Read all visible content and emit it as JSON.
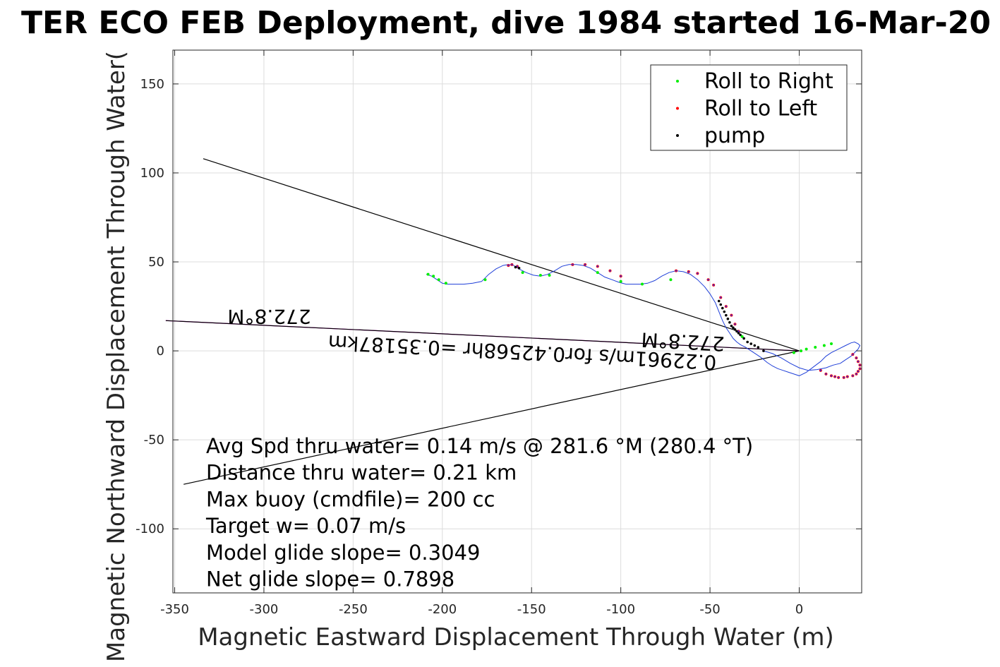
{
  "chart_data": {
    "type": "scatter",
    "title": "TER ECO FEB Deployment, dive 1984 started 16-Mar-20",
    "xlabel": "Magnetic Eastward Displacement Through Water (m)",
    "ylabel": "Magnetic Northward Displacement Through Water(",
    "xlim": [
      -351,
      35
    ],
    "ylim": [
      -136,
      169
    ],
    "grid": true,
    "xticks": [
      -350,
      -300,
      -250,
      -200,
      -150,
      -100,
      -50,
      0
    ],
    "yticks": [
      -100,
      -50,
      0,
      50,
      100,
      150
    ],
    "legend": {
      "placement": "top-right",
      "entries": [
        {
          "label": "Roll to Right",
          "color": "#00ee00"
        },
        {
          "label": "Roll to Left",
          "color": "#ff0000"
        },
        {
          "label": "pump",
          "color": "#000000"
        }
      ]
    },
    "track": {
      "color": "#1f3fd8",
      "x": [
        -209,
        -206,
        -203,
        -200,
        -197,
        -193,
        -188,
        -183,
        -178,
        -174,
        -170,
        -166,
        -163,
        -160,
        -157,
        -153,
        -149,
        -145,
        -141,
        -137,
        -133,
        -129,
        -125,
        -121,
        -117,
        -113,
        -109,
        -105,
        -101,
        -97,
        -93,
        -89,
        -85,
        -81,
        -77,
        -73,
        -69,
        -65,
        -61,
        -57,
        -53,
        -50,
        -47,
        -45,
        -43,
        -41,
        -39,
        -37,
        -35,
        -33,
        -30,
        -27,
        -24,
        -21,
        -18,
        -15,
        -12,
        -9,
        -6,
        -3,
        0,
        4,
        8,
        12,
        15,
        18,
        22,
        26,
        29,
        31,
        33,
        34,
        33,
        31,
        29,
        26,
        23,
        19,
        15,
        10,
        5,
        0,
        -5,
        -10,
        -15,
        -20
      ],
      "y": [
        43,
        42,
        40,
        38,
        37.5,
        37.5,
        37.5,
        38,
        39,
        43,
        46,
        48,
        48.5,
        48,
        46,
        44,
        42.5,
        42,
        43,
        45,
        47.5,
        48.5,
        48.5,
        48,
        46.5,
        44,
        41.5,
        40,
        38.5,
        37.5,
        37.5,
        37.5,
        38,
        39.5,
        42,
        44,
        45,
        44.5,
        43,
        40,
        36,
        32,
        27,
        22,
        17,
        13,
        10,
        7,
        5,
        3.5,
        2,
        0,
        -2,
        -4,
        -6.5,
        -8.5,
        -10,
        -11,
        -12,
        -13,
        -14,
        -12,
        -9,
        -6,
        -3,
        -1,
        1,
        3,
        4.5,
        5,
        4,
        3,
        1,
        -1,
        -3,
        -5,
        -7,
        -8,
        -9.5,
        -10.5,
        -11,
        -9.5,
        -7,
        -4,
        -1.5,
        0
      ]
    },
    "roll_right_points": {
      "x": [
        -208,
        -205,
        -202,
        -198,
        -176,
        -155,
        -145,
        -140,
        -113,
        -100,
        -88,
        -72,
        -32,
        -3,
        1,
        4,
        9,
        14,
        18
      ],
      "y": [
        43,
        42,
        40,
        38,
        40,
        44,
        42.5,
        42.5,
        44,
        39,
        37.5,
        40,
        8,
        -1,
        0,
        1,
        2,
        3,
        4
      ]
    },
    "roll_left_points": {
      "x": [
        -163,
        -161,
        -158,
        -127,
        -120,
        -113,
        -106,
        -100,
        -69,
        -62,
        -57,
        -51,
        -48,
        -44,
        -41,
        -38,
        -36,
        -34,
        30,
        32,
        33,
        34,
        34,
        33,
        32,
        30,
        27,
        25,
        22,
        20,
        18,
        15,
        12
      ],
      "y": [
        48,
        48.5,
        47.5,
        48.5,
        48.5,
        47.5,
        45,
        42,
        45,
        44.5,
        43.5,
        40,
        37,
        30,
        25,
        20,
        15,
        11,
        -2,
        -4,
        -6,
        -8,
        -10,
        -11.5,
        -13,
        -14,
        -14.5,
        -15,
        -15,
        -14.5,
        -14,
        -13,
        -11
      ]
    },
    "pump_points": {
      "x": [
        -159,
        -157,
        -45,
        -44,
        -43,
        -42,
        -41,
        -40,
        -39,
        -38,
        -37,
        -36,
        -35,
        -34,
        -33,
        -31,
        -29,
        -27,
        -25,
        -23,
        -20
      ],
      "y": [
        47,
        46.5,
        28,
        26,
        24,
        22,
        20,
        18,
        16,
        14,
        13,
        12,
        11,
        10,
        9,
        7,
        5,
        4,
        3,
        2,
        0
      ]
    },
    "reference_lines": [
      {
        "color": "#000000",
        "x": [
          -334,
          0
        ],
        "y": [
          108,
          0
        ]
      },
      {
        "color": "#000000",
        "x": [
          -345,
          0
        ],
        "y": [
          -75,
          0
        ]
      },
      {
        "color": "#ff00ff",
        "x": [
          -355,
          0
        ],
        "y": [
          17,
          0
        ]
      },
      {
        "color": "#000000",
        "x": [
          -355,
          0
        ],
        "y": [
          17,
          0
        ]
      }
    ],
    "rotated_labels": [
      {
        "text": "272.8°M",
        "x": -297,
        "y": 23,
        "angle": 180
      },
      {
        "text": "0.22961m/s for0.42568hr =0.35187km",
        "x": -155,
        "y": 3,
        "angle": 183
      },
      {
        "text": "272.8°M",
        "x": -65,
        "y": 9,
        "angle": 183
      }
    ],
    "annotations": [
      "Avg Spd thru water=  0.14 m/s @ 281.6 °M (280.4 °T)",
      "Distance thru water=  0.21 km",
      "Max buoy (cmdfile)= 200 cc",
      "Target w= 0.07 m/s",
      "Model glide slope= 0.3049",
      "Net glide slope= 0.7898"
    ]
  }
}
